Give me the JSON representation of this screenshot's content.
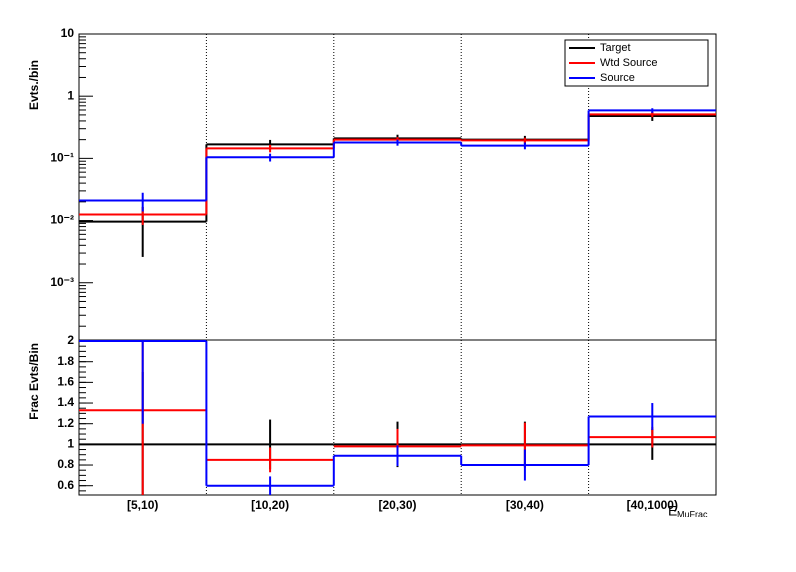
{
  "chart_data": [
    {
      "type": "step",
      "ylabel": "Evts./bin",
      "ylog": true,
      "ylim": [
        0.00012,
        10
      ],
      "yticks": [
        {
          "value": 0.001,
          "label": "10⁻³"
        },
        {
          "value": 0.01,
          "label": "10⁻²"
        },
        {
          "value": 0.1,
          "label": "10⁻¹"
        },
        1,
        10
      ],
      "xgrid": true,
      "legend": "top-right",
      "series": [
        {
          "name": "Target",
          "color": "#000000",
          "values": [
            0.0096,
            0.168,
            0.21,
            0.2,
            0.48
          ],
          "errors": [
            0.007,
            0.03,
            0.03,
            0.03,
            0.08
          ]
        },
        {
          "name": "Wtd Source",
          "color": "#ff0000",
          "values": [
            0.0125,
            0.145,
            0.2,
            0.195,
            0.51
          ],
          "errors": [
            0.004,
            0.02,
            0.02,
            0.02,
            0.05
          ]
        },
        {
          "name": "Source",
          "color": "#0000ff",
          "values": [
            0.021,
            0.104,
            0.18,
            0.16,
            0.59
          ],
          "errors": [
            0.007,
            0.015,
            0.02,
            0.02,
            0.05
          ]
        }
      ]
    },
    {
      "type": "ratio",
      "ylabel": "Frac Evts/Bin",
      "xlabel": "E",
      "xlabel_sub": "MuFrac",
      "categories": [
        "[5,10)",
        "[10,20)",
        "[20,30)",
        "[30,40)",
        "[40,1000)"
      ],
      "ylim": [
        0.51,
        2.01
      ],
      "yticks": [
        0.6,
        0.8,
        1,
        1.2,
        1.4,
        1.6,
        1.8,
        2
      ],
      "xgrid": true,
      "series": [
        {
          "name": "Target",
          "color": "#000000",
          "values": [
            1,
            1,
            1,
            1,
            1
          ],
          "errors": [
            0.7,
            0.24,
            0.22,
            0.22,
            0.15
          ]
        },
        {
          "name": "Wtd Source",
          "color": "#ff0000",
          "values": [
            1.33,
            0.85,
            0.98,
            0.99,
            1.07
          ],
          "errors": [
            0.85,
            0.12,
            0.17,
            0.22,
            0.1
          ]
        },
        {
          "name": "Source",
          "color": "#0000ff",
          "values": [
            2,
            0.6,
            0.89,
            0.8,
            1.27
          ],
          "errors": [
            0.8,
            0.09,
            0.1,
            0.15,
            0.13
          ]
        }
      ]
    }
  ]
}
